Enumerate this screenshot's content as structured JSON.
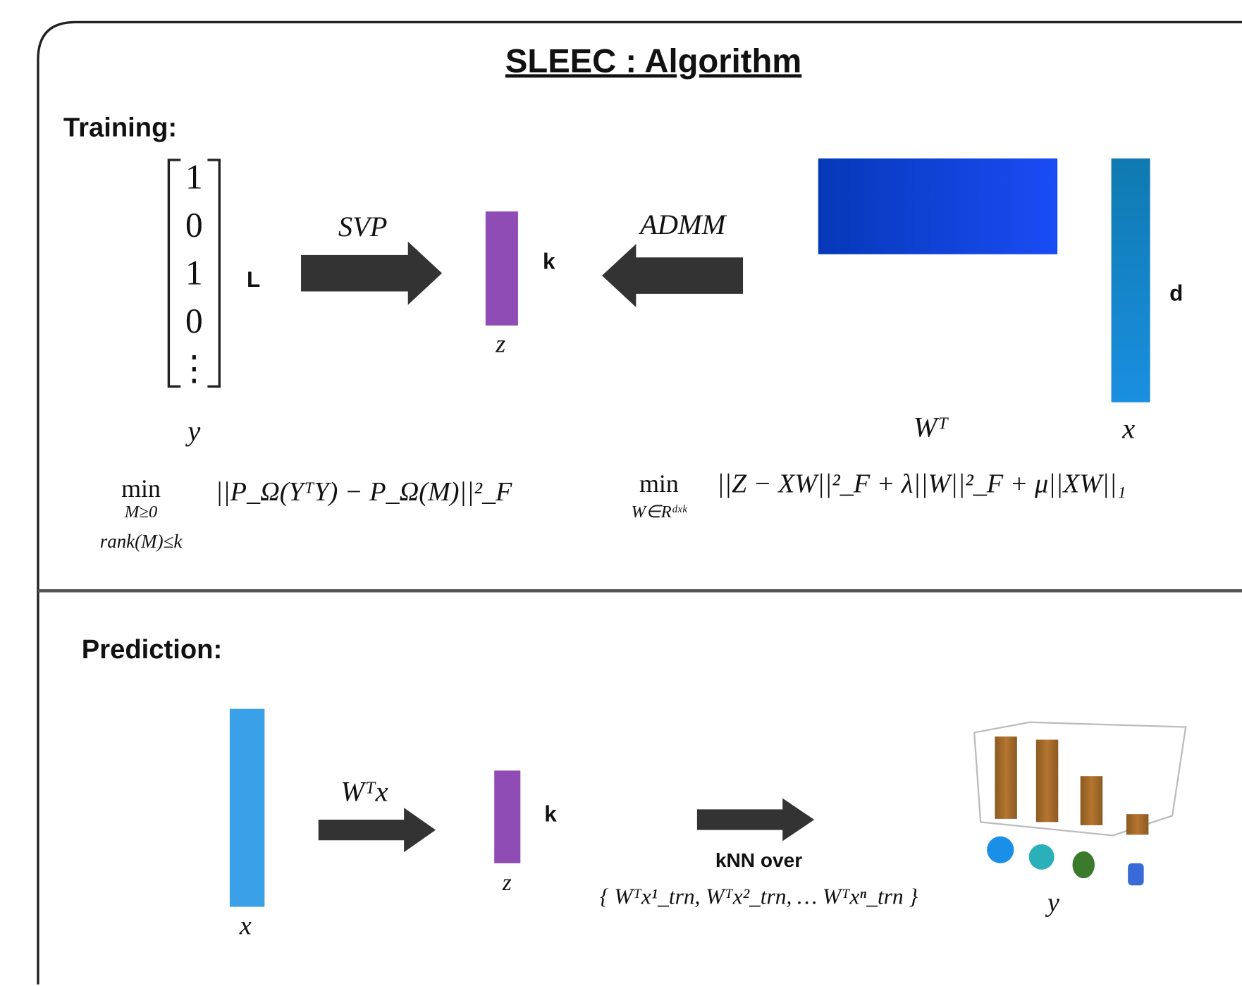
{
  "title": "SLEEC : Algorithm",
  "training": {
    "heading": "Training:",
    "label_vector": {
      "entries": [
        "1",
        "0",
        "1",
        "0",
        "⋮"
      ],
      "dim": "L",
      "name": "y"
    },
    "svp": "SVP",
    "embedding": {
      "dim": "k",
      "name": "z"
    },
    "admm": "ADMM",
    "projection": {
      "name": "Wᵀ"
    },
    "feature": {
      "dim": "d",
      "name": "x"
    },
    "svp_objective": {
      "op": "min",
      "constraint1": "M≥0",
      "constraint2": "rank(M)≤k",
      "expr": "||P_Ω(YᵀY) − P_Ω(M)||²_F"
    },
    "admm_objective": {
      "op": "min",
      "constraint": "W∈Rᵈˣᵏ",
      "expr": "||Z − XW||²_F + λ||W||²_F + μ||XW||₁"
    }
  },
  "prediction": {
    "heading": "Prediction:",
    "feature": {
      "name": "x"
    },
    "map": "Wᵀx",
    "embedding": {
      "dim": "k",
      "name": "z"
    },
    "knn": "kNN over",
    "knn_set": "{ Wᵀx¹_trn,  Wᵀx²_trn, … Wᵀxⁿ_trn }",
    "output": "y"
  }
}
